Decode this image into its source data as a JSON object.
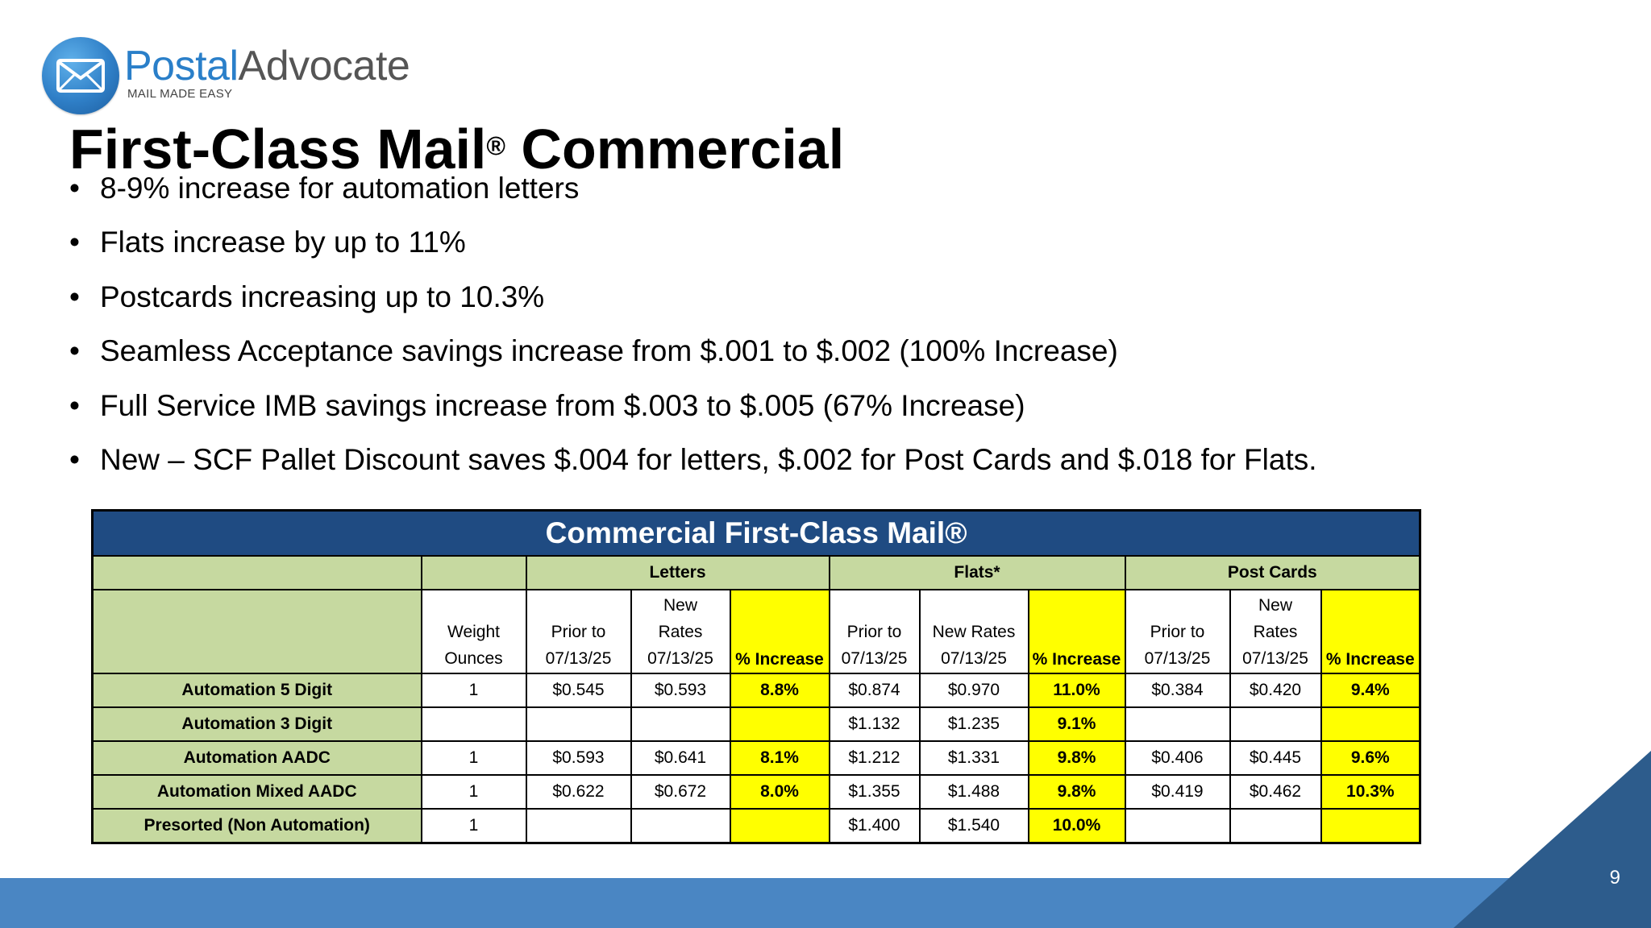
{
  "logo": {
    "name_part1": "Postal",
    "name_part2": "Advocate",
    "tagline": "MAIL MADE EASY",
    "icon": "envelope-icon"
  },
  "slide": {
    "title": "First-Class Mail",
    "title_mark": "®",
    "title_rest": " Commercial",
    "page_number": "9"
  },
  "bullets": [
    "8-9% increase for automation letters",
    "Flats increase by up to 11%",
    "Postcards increasing up to 10.3%",
    "Seamless Acceptance savings increase from $.001 to $.002 (100% Increase)",
    "Full Service IMB savings increase from $.003 to $.005 (67% Increase)",
    "New – SCF Pallet Discount saves $.004 for letters, $.002 for Post Cards and $.018 for Flats."
  ],
  "table": {
    "caption": "Commercial First-Class Mail®",
    "groups": {
      "letters": "Letters",
      "flats": "Flats*",
      "postcards": "Post Cards"
    },
    "headers": {
      "weight_1": "Weight",
      "weight_2": "Ounces",
      "l_prior_1": "Prior to",
      "l_prior_2": "07/13/25",
      "l_new_1": "New",
      "l_new_2": "Rates",
      "l_new_3": "07/13/25",
      "l_pct": "% Increase",
      "f_prior_1": "Prior to",
      "f_prior_2": "07/13/25",
      "f_new_1": "New Rates",
      "f_new_2": "07/13/25",
      "f_pct": "% Increase",
      "p_prior_1": "Prior to",
      "p_prior_2": "07/13/25",
      "p_new_1": "New",
      "p_new_2": "Rates",
      "p_new_3": "07/13/25",
      "p_pct": "% Increase"
    },
    "rows": [
      {
        "label": "Automation 5 Digit",
        "cells": [
          "1",
          "$0.545",
          "$0.593",
          "8.8%",
          "$0.874",
          "$0.970",
          "11.0%",
          "$0.384",
          "$0.420",
          "9.4%"
        ]
      },
      {
        "label": "Automation 3 Digit",
        "cells": [
          "",
          "",
          "",
          "",
          "$1.132",
          "$1.235",
          "9.1%",
          "",
          "",
          ""
        ]
      },
      {
        "label": "Automation AADC",
        "cells": [
          "1",
          "$0.593",
          "$0.641",
          "8.1%",
          "$1.212",
          "$1.331",
          "9.8%",
          "$0.406",
          "$0.445",
          "9.6%"
        ]
      },
      {
        "label": "Automation Mixed AADC",
        "cells": [
          "1",
          "$0.622",
          "$0.672",
          "8.0%",
          "$1.355",
          "$1.488",
          "9.8%",
          "$0.419",
          "$0.462",
          "10.3%"
        ]
      },
      {
        "label": "Presorted (Non Automation)",
        "cells": [
          "1",
          "",
          "",
          "",
          "$1.400",
          "$1.540",
          "10.0%",
          "",
          "",
          ""
        ]
      }
    ]
  },
  "colors": {
    "header_blue": "#1f4b82",
    "header_green": "#c6d9a0",
    "highlight_yellow": "#ffff00",
    "footer_blue": "#4a86c3",
    "footer_dark": "#2d5c8c"
  }
}
